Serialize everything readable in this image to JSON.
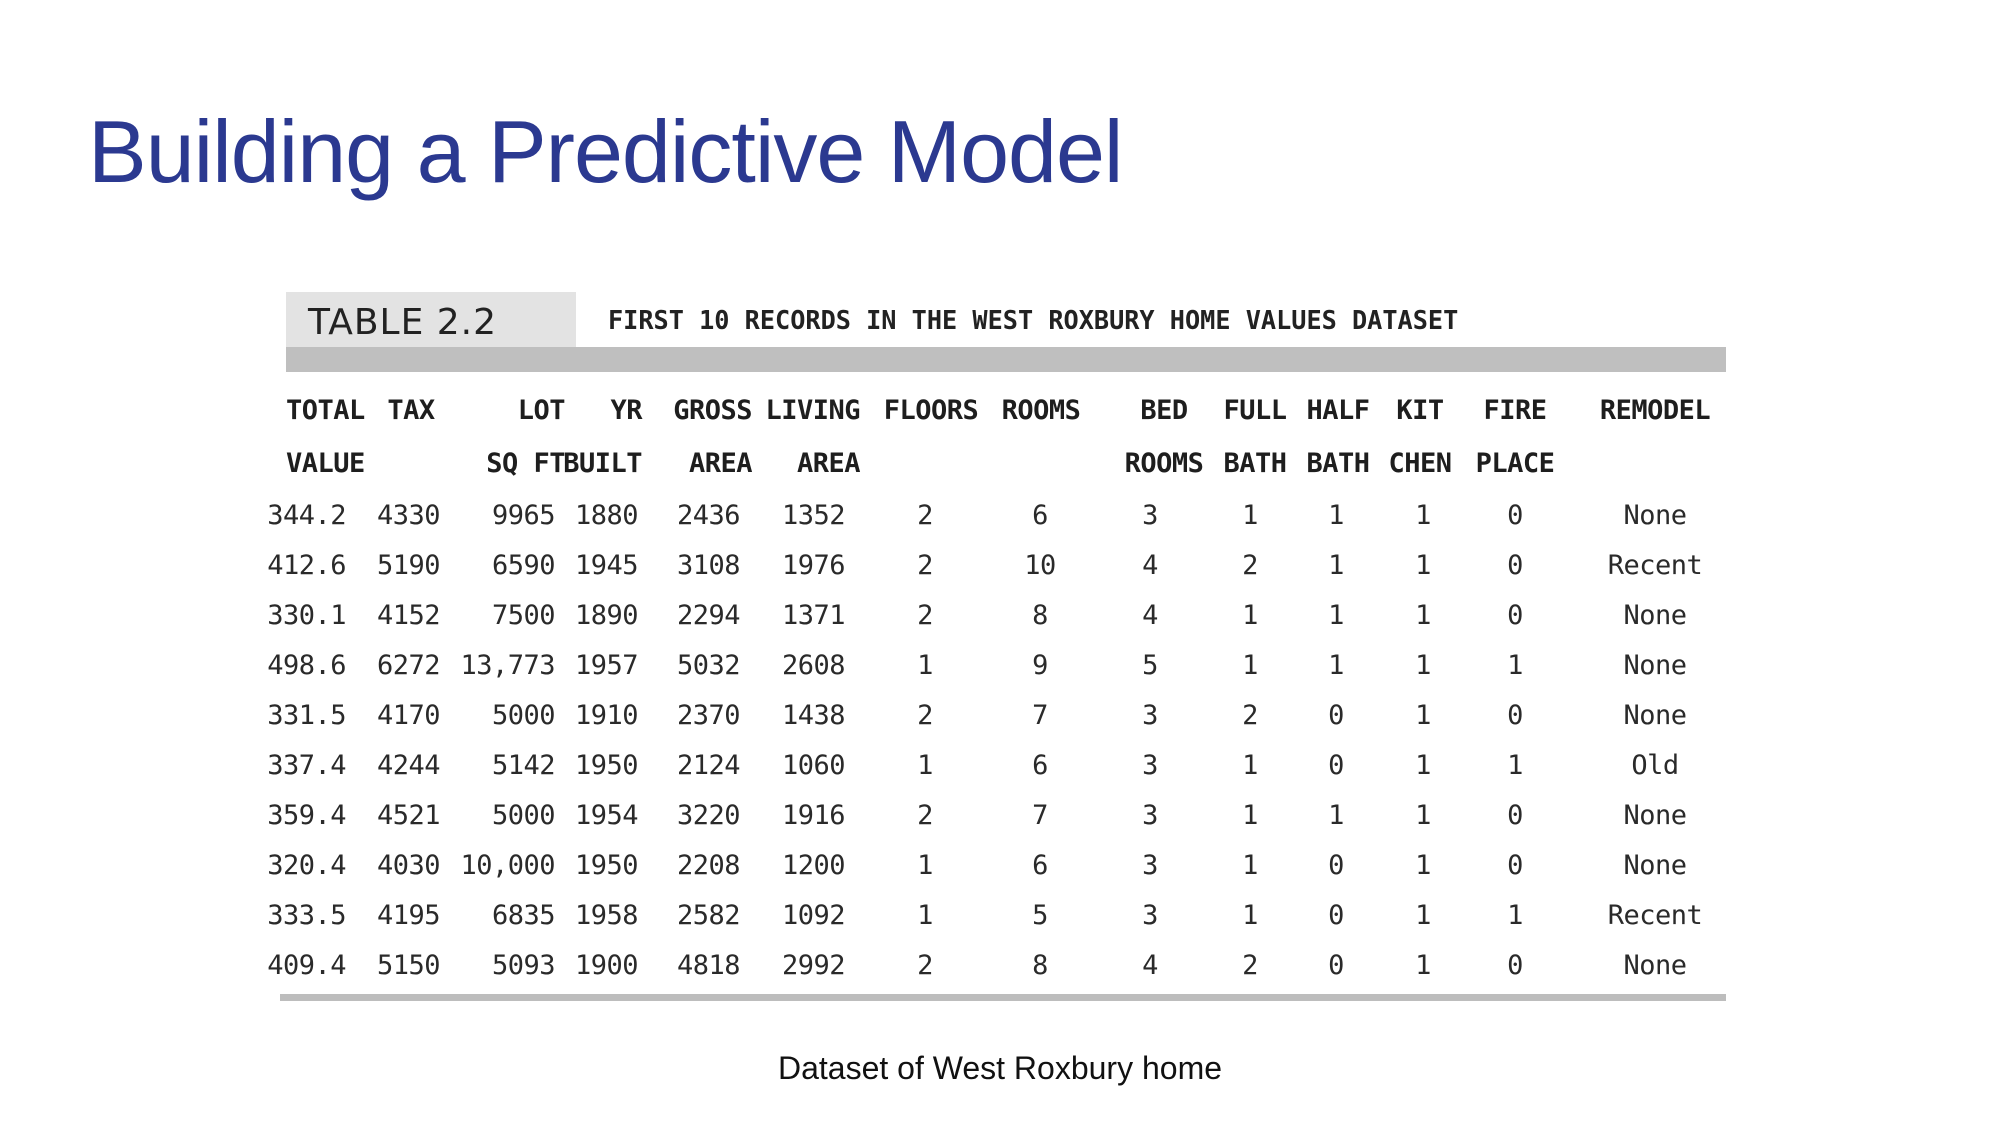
{
  "slide": {
    "title": "Building a Predictive Model",
    "caption": "Dataset of West Roxbury home"
  },
  "table": {
    "number": "TABLE 2.2",
    "caption": "FIRST 10 RECORDS IN THE WEST ROXBURY HOME VALUES DATASET",
    "header_line1": [
      "TOTAL",
      "TAX",
      "LOT",
      "YR",
      "GROSS",
      "LIVING",
      "FLOORS",
      "ROOMS",
      "BED",
      "FULL",
      "HALF",
      "KIT",
      "FIRE",
      "REMODEL"
    ],
    "header_line2": [
      "VALUE",
      "",
      "SQ FT",
      "BUILT",
      "AREA",
      "AREA",
      "",
      "",
      "ROOMS",
      "BATH",
      "BATH",
      "CHEN",
      "PLACE",
      ""
    ],
    "rows": [
      [
        "344.2",
        "4330",
        "9965",
        "1880",
        "2436",
        "1352",
        "2",
        "6",
        "3",
        "1",
        "1",
        "1",
        "0",
        "None"
      ],
      [
        "412.6",
        "5190",
        "6590",
        "1945",
        "3108",
        "1976",
        "2",
        "10",
        "4",
        "2",
        "1",
        "1",
        "0",
        "Recent"
      ],
      [
        "330.1",
        "4152",
        "7500",
        "1890",
        "2294",
        "1371",
        "2",
        "8",
        "4",
        "1",
        "1",
        "1",
        "0",
        "None"
      ],
      [
        "498.6",
        "6272",
        "13,773",
        "1957",
        "5032",
        "2608",
        "1",
        "9",
        "5",
        "1",
        "1",
        "1",
        "1",
        "None"
      ],
      [
        "331.5",
        "4170",
        "5000",
        "1910",
        "2370",
        "1438",
        "2",
        "7",
        "3",
        "2",
        "0",
        "1",
        "0",
        "None"
      ],
      [
        "337.4",
        "4244",
        "5142",
        "1950",
        "2124",
        "1060",
        "1",
        "6",
        "3",
        "1",
        "0",
        "1",
        "1",
        "Old"
      ],
      [
        "359.4",
        "4521",
        "5000",
        "1954",
        "3220",
        "1916",
        "2",
        "7",
        "3",
        "1",
        "1",
        "1",
        "0",
        "None"
      ],
      [
        "320.4",
        "4030",
        "10,000",
        "1950",
        "2208",
        "1200",
        "1",
        "6",
        "3",
        "1",
        "0",
        "1",
        "0",
        "None"
      ],
      [
        "333.5",
        "4195",
        "6835",
        "1958",
        "2582",
        "1092",
        "1",
        "5",
        "3",
        "1",
        "0",
        "1",
        "1",
        "Recent"
      ],
      [
        "409.4",
        "5150",
        "5093",
        "1900",
        "4818",
        "2992",
        "2",
        "8",
        "4",
        "2",
        "0",
        "1",
        "0",
        "None"
      ]
    ]
  }
}
